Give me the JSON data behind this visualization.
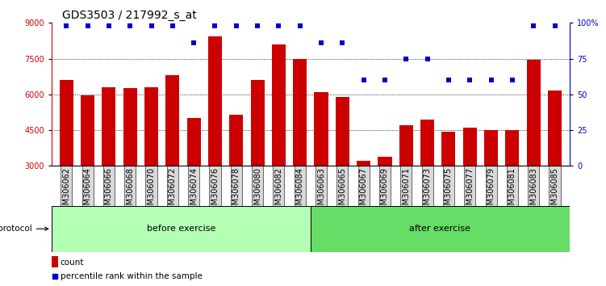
{
  "title": "GDS3503 / 217992_s_at",
  "categories": [
    "GSM306062",
    "GSM306064",
    "GSM306066",
    "GSM306068",
    "GSM306070",
    "GSM306072",
    "GSM306074",
    "GSM306076",
    "GSM306078",
    "GSM306080",
    "GSM306082",
    "GSM306084",
    "GSM306063",
    "GSM306065",
    "GSM306067",
    "GSM306069",
    "GSM306071",
    "GSM306073",
    "GSM306075",
    "GSM306077",
    "GSM306079",
    "GSM306081",
    "GSM306083",
    "GSM306085"
  ],
  "bar_values": [
    6600,
    5950,
    6300,
    6250,
    6300,
    6800,
    5000,
    8450,
    5150,
    6600,
    8100,
    7500,
    6100,
    5900,
    3200,
    3400,
    4700,
    4950,
    4450,
    4600,
    4500,
    4500,
    7450,
    6150
  ],
  "percentile_values": [
    98,
    98,
    98,
    98,
    98,
    98,
    86,
    98,
    98,
    98,
    98,
    98,
    86,
    86,
    60,
    60,
    75,
    75,
    60,
    60,
    60,
    60,
    98,
    98
  ],
  "bar_color": "#cc0000",
  "percentile_color": "#0000cc",
  "ylim_left": [
    3000,
    9000
  ],
  "ylim_right": [
    0,
    100
  ],
  "yticks_left": [
    3000,
    4500,
    6000,
    7500,
    9000
  ],
  "yticks_right": [
    0,
    25,
    50,
    75,
    100
  ],
  "before_count": 12,
  "after_count": 12,
  "before_label": "before exercise",
  "after_label": "after exercise",
  "protocol_label": "protocol",
  "legend_count_label": "count",
  "legend_pct_label": "percentile rank within the sample",
  "background_color": "#ffffff",
  "grid_color": "#000000",
  "title_fontsize": 10,
  "tick_fontsize": 7,
  "bar_width": 0.65,
  "before_color": "#b3ffb3",
  "after_color": "#66dd66"
}
